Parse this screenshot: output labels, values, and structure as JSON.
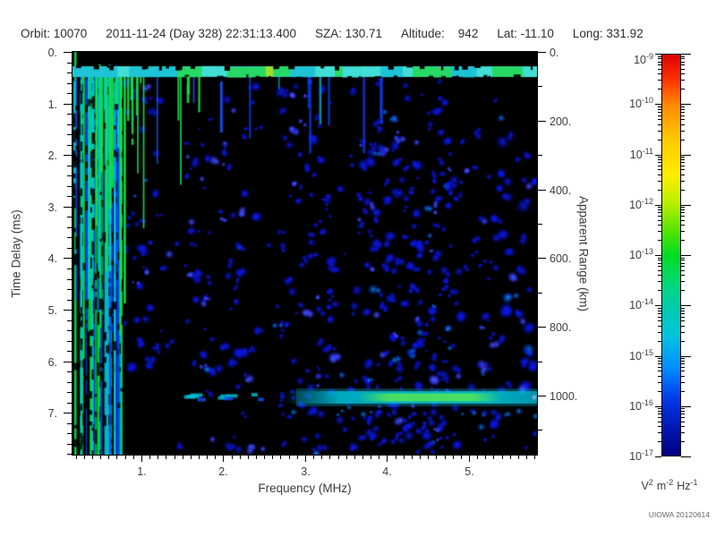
{
  "header": {
    "items": [
      "Orbit: 10070",
      "2011-11-24 (Day 328) 22:31:13.400",
      "SZA: 130.71",
      "Altitude:    942",
      "Lat: -11.10",
      "Long: 331.92"
    ],
    "readouts": {
      "orbit": "10070",
      "date": "2011-11-24",
      "day_of_year": "328",
      "time": "22:31:13.400",
      "sza": "130.71",
      "altitude_km": "942",
      "lat": "-11.10",
      "long": "331.92"
    }
  },
  "footer": {
    "stamp": "UIOWA 20120614"
  },
  "colorbar_units": {
    "v_base": "V",
    "v_sup": "2",
    "m_base": "m",
    "m_sup": "-2",
    "hz_base": "Hz",
    "hz_sup": "-1"
  },
  "chart_data": {
    "type": "heatmap",
    "xlabel": "Frequency (MHz)",
    "ylabel": "Time Delay (ms)",
    "y2label": "Apparent Range (km)",
    "x_range_mhz": [
      0.16,
      5.83
    ],
    "x_ticks": [
      {
        "v": 1,
        "label": "1."
      },
      {
        "v": 2,
        "label": "2."
      },
      {
        "v": 3,
        "label": "3."
      },
      {
        "v": 4,
        "label": "4."
      },
      {
        "v": 5,
        "label": "5."
      }
    ],
    "x_minor_step_mhz": 0.1,
    "y_range_ms": [
      0,
      7.81
    ],
    "y_ticks": [
      {
        "v": 0,
        "label": "0."
      },
      {
        "v": 1,
        "label": "1."
      },
      {
        "v": 2,
        "label": "2."
      },
      {
        "v": 3,
        "label": "3."
      },
      {
        "v": 4,
        "label": "4."
      },
      {
        "v": 5,
        "label": "5."
      },
      {
        "v": 6,
        "label": "6."
      },
      {
        "v": 7,
        "label": "7."
      }
    ],
    "y_minor_step_ms": 0.2,
    "y2_range_km": [
      0,
      1172
    ],
    "y2_ticks": [
      {
        "v": 0,
        "label": "0."
      },
      {
        "v": 200,
        "label": "200."
      },
      {
        "v": 400,
        "label": "400."
      },
      {
        "v": 600,
        "label": "600."
      },
      {
        "v": 800,
        "label": "800."
      },
      {
        "v": 1000,
        "label": "1000."
      }
    ],
    "y2_minor_step_km": 100,
    "grid": false,
    "colorbar": {
      "range_top": "1e-9",
      "range_bottom": "1e-17",
      "label_exponents": [
        -9,
        -10,
        -11,
        -12,
        -13,
        -14,
        -15,
        -16,
        -17
      ],
      "gradient_stops": [
        [
          0,
          "#dd0000"
        ],
        [
          0.06,
          "#ff3000"
        ],
        [
          0.125,
          "#ff8800"
        ],
        [
          0.21,
          "#ffc800"
        ],
        [
          0.3,
          "#ffee00"
        ],
        [
          0.37,
          "#baee00"
        ],
        [
          0.44,
          "#55e400"
        ],
        [
          0.5,
          "#00dd22"
        ],
        [
          0.57,
          "#00d877"
        ],
        [
          0.625,
          "#00ccaa"
        ],
        [
          0.7,
          "#00c4dd"
        ],
        [
          0.78,
          "#0090ff"
        ],
        [
          0.845,
          "#0048f0"
        ],
        [
          0.875,
          "#0030dd"
        ],
        [
          0.94,
          "#0014ad"
        ],
        [
          1,
          "#000080"
        ]
      ]
    },
    "features": {
      "top_band": {
        "time_delay_ms": [
          0.28,
          0.5
        ],
        "freq_mhz": [
          0.16,
          5.83
        ],
        "colors": [
          "#2cd0c8",
          "#28dc5a",
          "#aae020"
        ]
      },
      "surface_reflection_band": {
        "time_delay_ms": [
          6.55,
          6.85
        ],
        "freq_mhz": [
          2.9,
          5.83
        ],
        "apparent_range_km": 1000,
        "core_freq_mhz": [
          3.8,
          5.1
        ],
        "colors": [
          "#00c8d8",
          "#50e45a"
        ]
      },
      "ionospheric_stripes": {
        "freq_mhz": [
          0.16,
          0.8
        ],
        "time_delay_ms": [
          0.3,
          7.8
        ],
        "colors": [
          "#00dd3c",
          "#00c8e0",
          "#0040f0",
          "#001ea0"
        ]
      },
      "diffuse_echo_speckle": {
        "freq_mhz": [
          1.0,
          5.8
        ],
        "time_delay_ms": [
          0.6,
          7.8
        ],
        "color": "#0a1ee1",
        "approx_intensity": "1e-16"
      },
      "quiet_columns_mhz": [
        [
          1.15,
          1.35
        ],
        [
          2.35,
          2.55
        ],
        [
          2.85,
          3.0
        ]
      ]
    }
  }
}
